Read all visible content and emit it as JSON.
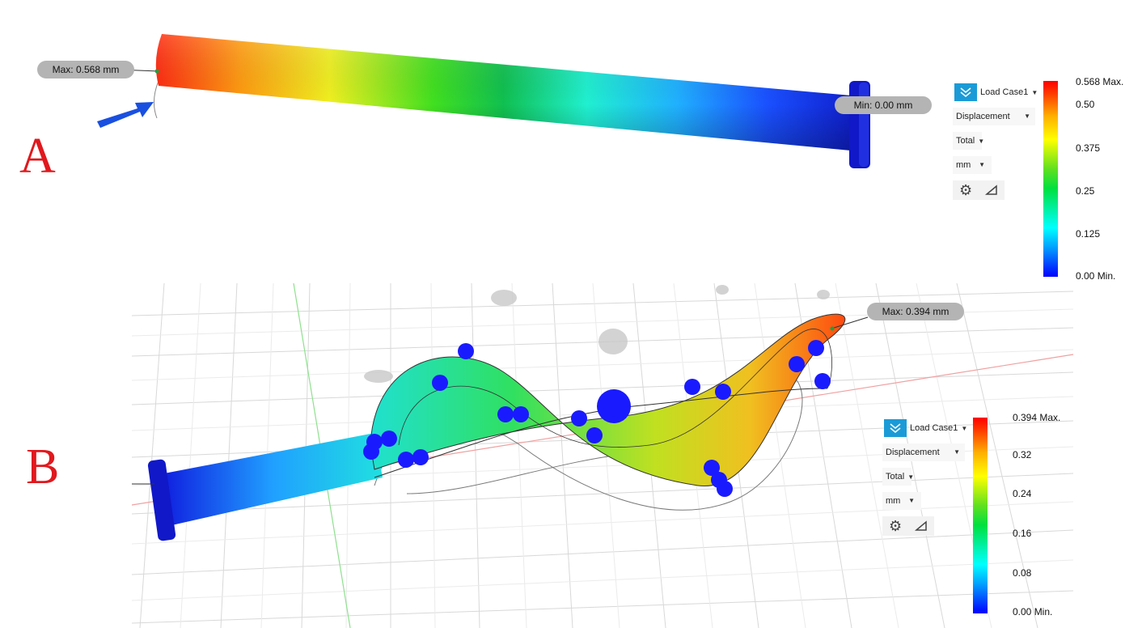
{
  "panels": {
    "a_label": "A",
    "b_label": "B"
  },
  "top": {
    "max_callout": "Max: 0.568 mm",
    "min_callout": "Min: 0.00 mm",
    "controls": {
      "load_case": "Load Case1",
      "result_type": "Displacement",
      "component": "Total",
      "unit": "mm"
    },
    "legend": {
      "ticks": [
        "0.568 Max.",
        "0.50",
        "0.375",
        "0.25",
        "0.125",
        "0.00 Min."
      ]
    }
  },
  "bottom": {
    "max_callout": "Max: 0.394 mm",
    "controls": {
      "load_case": "Load Case1",
      "result_type": "Displacement",
      "component": "Total",
      "unit": "mm"
    },
    "legend": {
      "ticks": [
        "0.394 Max.",
        "0.32",
        "0.24",
        "0.16",
        "0.08",
        "0.00 Min."
      ]
    }
  },
  "colors": {
    "accent": "#1a9bd7",
    "panel_label": "#e0191e",
    "min_color": "#0000ff",
    "max_color": "#ff0000"
  },
  "icons": [
    "check-chevron-icon",
    "gear-icon",
    "ruler-triangle-icon",
    "arrow-indicator-icon",
    "caret-down-icon"
  ]
}
